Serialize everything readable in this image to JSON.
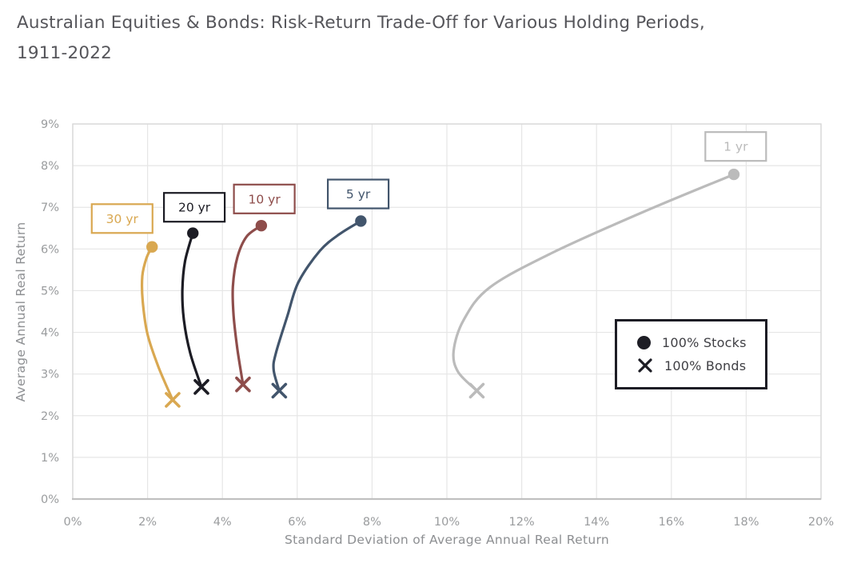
{
  "heading": {
    "line1": "Australian Equities & Bonds: Risk-Return Trade-Off for Various Holding Periods,",
    "line2": "1911-2022"
  },
  "chart_data": {
    "type": "line",
    "title": "Australian Equities & Bonds: Risk-Return Trade-Off for Various Holding Periods, 1911-2022",
    "xlabel": "Standard Deviation of Average Annual Real Return",
    "ylabel": "Average Annual Real Return",
    "xlim": [
      0,
      20
    ],
    "ylim": [
      0,
      9
    ],
    "x_tick_step": 2,
    "y_tick_step": 1,
    "x_tick_labels": [
      "0%",
      "2%",
      "4%",
      "6%",
      "8%",
      "10%",
      "12%",
      "14%",
      "16%",
      "18%",
      "20%"
    ],
    "y_tick_labels": [
      "0%",
      "1%",
      "2%",
      "3%",
      "4%",
      "5%",
      "6%",
      "7%",
      "8%",
      "9%"
    ],
    "grid": true,
    "units": "percent",
    "legend": {
      "position": "inside-right",
      "items": [
        {
          "marker": "circle",
          "label": "100% Stocks"
        },
        {
          "marker": "x",
          "label": "100% Bonds"
        }
      ]
    },
    "series": [
      {
        "label": "1 yr",
        "color": "#bbbbbb",
        "stocks_point": {
          "sd": 17.67,
          "return": 7.79
        },
        "bonds_point": {
          "sd": 10.8,
          "return": 2.6
        },
        "curve": [
          [
            10.8,
            2.6
          ],
          [
            10.3,
            3.05
          ],
          [
            10.18,
            3.55
          ],
          [
            10.45,
            4.3
          ],
          [
            11.15,
            5.08
          ],
          [
            12.8,
            5.9
          ],
          [
            15.2,
            6.87
          ],
          [
            17.67,
            7.79
          ]
        ],
        "label_anchor": {
          "sd": 17.72,
          "return": 8.46
        }
      },
      {
        "label": "5 yr",
        "color": "#42556c",
        "stocks_point": {
          "sd": 7.7,
          "return": 6.67
        },
        "bonds_point": {
          "sd": 5.52,
          "return": 2.6
        },
        "curve": [
          [
            5.52,
            2.6
          ],
          [
            5.37,
            3.1
          ],
          [
            5.43,
            3.5
          ],
          [
            5.74,
            4.4
          ],
          [
            6.03,
            5.2
          ],
          [
            6.6,
            5.95
          ],
          [
            7.12,
            6.35
          ],
          [
            7.7,
            6.67
          ]
        ],
        "label_anchor": {
          "sd": 7.63,
          "return": 7.32
        }
      },
      {
        "label": "10 yr",
        "color": "#8e4d4b",
        "stocks_point": {
          "sd": 5.04,
          "return": 6.56
        },
        "bonds_point": {
          "sd": 4.55,
          "return": 2.75
        },
        "curve": [
          [
            4.55,
            2.75
          ],
          [
            4.4,
            3.6
          ],
          [
            4.3,
            4.4
          ],
          [
            4.28,
            5.1
          ],
          [
            4.4,
            5.8
          ],
          [
            4.65,
            6.3
          ],
          [
            5.04,
            6.56
          ]
        ],
        "label_anchor": {
          "sd": 5.12,
          "return": 7.2
        }
      },
      {
        "label": "20 yr",
        "color": "#1c1c24",
        "stocks_point": {
          "sd": 3.21,
          "return": 6.38
        },
        "bonds_point": {
          "sd": 3.44,
          "return": 2.69
        },
        "curve": [
          [
            3.44,
            2.69
          ],
          [
            3.14,
            3.5
          ],
          [
            2.97,
            4.3
          ],
          [
            2.93,
            5.0
          ],
          [
            3.0,
            5.7
          ],
          [
            3.21,
            6.38
          ]
        ],
        "label_anchor": {
          "sd": 3.25,
          "return": 7.0
        }
      },
      {
        "label": "30 yr",
        "color": "#d9a851",
        "stocks_point": {
          "sd": 2.12,
          "return": 6.05
        },
        "bonds_point": {
          "sd": 2.67,
          "return": 2.38
        },
        "curve": [
          [
            2.67,
            2.38
          ],
          [
            2.3,
            3.15
          ],
          [
            2.0,
            3.95
          ],
          [
            1.87,
            4.75
          ],
          [
            1.86,
            5.35
          ],
          [
            1.97,
            5.78
          ],
          [
            2.12,
            6.05
          ]
        ],
        "label_anchor": {
          "sd": 1.32,
          "return": 6.73
        }
      }
    ],
    "colors": {
      "grid": "#e6e6e6",
      "plot_border": "#d8d8d8",
      "axis_line": "#c0c0c0",
      "tick_text": "#9a9c9e",
      "axis_title_text": "#8d8f92",
      "heading_text": "#55555a",
      "legend_border": "#1d1d25",
      "legend_text": "#3f3f44"
    }
  }
}
